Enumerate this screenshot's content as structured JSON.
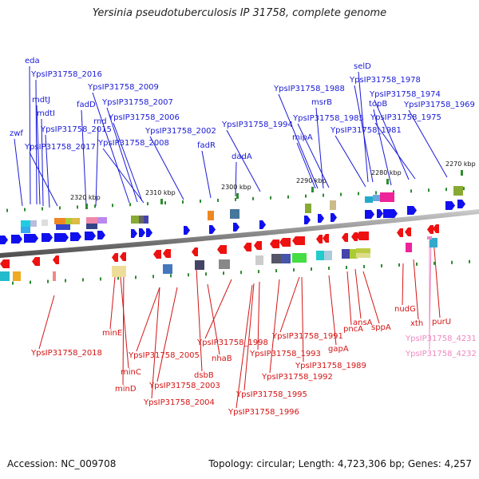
{
  "title": "Yersinia pseudotuberculosis IP 31758, complete genome",
  "footer": {
    "accession": "Accession: NC_009708",
    "topology": "Topology: circular; Length: 4,723,306 bp; Genes: 4,257"
  },
  "colors": {
    "forward_label": "#1a1ad6",
    "reverse_label": "#d41414",
    "rna_label": "#ee88c0",
    "forward_arrow": "#1010ee",
    "reverse_arrow": "#ee1111",
    "backbone": "#777777",
    "tick": "#2e8b2e"
  },
  "scale_labels": [
    "2320 kbp",
    "2310 kbp",
    "2300 kbp",
    "2290 kbp",
    "2280 kbp",
    "2270 kbp"
  ],
  "forward_genes": [
    "zwf",
    "eda",
    "YpsIP31758_2016",
    "mdtJ",
    "mdtI",
    "YpsIP31758_2015",
    "YpsIP31758_2017",
    "fadD",
    "rnd",
    "YpsIP31758_2009",
    "YpsIP31758_2007",
    "YpsIP31758_2006",
    "YpsIP31758_2008",
    "YpsIP31758_2002",
    "fadR",
    "dadA",
    "YpsIP31758_1994",
    "YpsIP31758_1988",
    "msrB",
    "YpsIP31758_1985",
    "mipA",
    "YpsIP31758_1981",
    "selD",
    "YpsIP31758_1978",
    "YpsIP31758_1974",
    "topB",
    "YpsIP31758_1975",
    "YpsIP31758_1969"
  ],
  "reverse_genes": [
    "YpsIP31758_2018",
    "minE",
    "minC",
    "minD",
    "YpsIP31758_2005",
    "YpsIP31758_2003",
    "YpsIP31758_2004",
    "dsbB",
    "nhaB",
    "YpsIP31758_1998",
    "YpsIP31758_1993",
    "YpsIP31758_1995",
    "YpsIP31758_1996",
    "YpsIP31758_1992",
    "YpsIP31758_1991",
    "YpsIP31758_1989",
    "gapA",
    "pncA",
    "ansA",
    "sppA",
    "nudG",
    "xth",
    "purU"
  ],
  "rna_genes": [
    "YpsIP31758_4231",
    "YpsIP31758_4232"
  ]
}
